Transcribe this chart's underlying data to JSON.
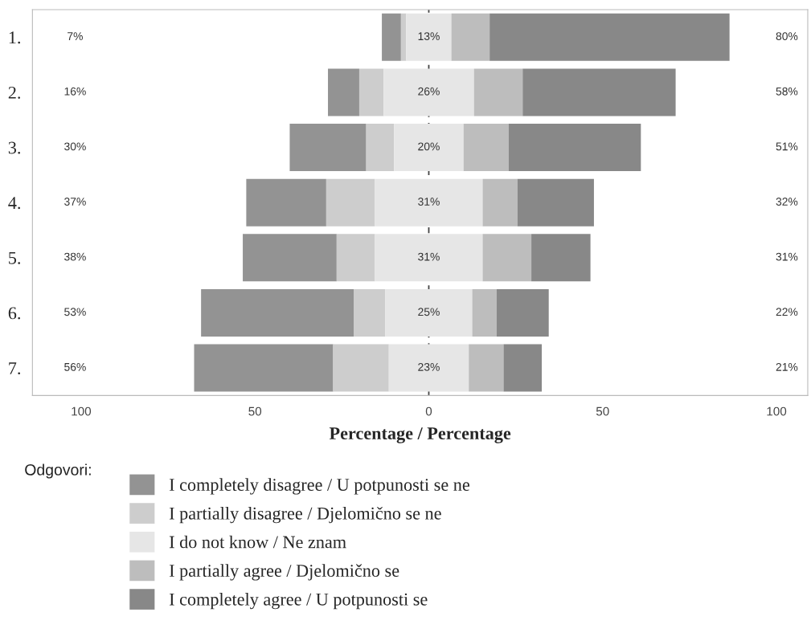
{
  "chart_data": {
    "type": "bar",
    "orientation": "horizontal",
    "categories": [
      "1.",
      "2.",
      "3.",
      "4.",
      "5.",
      "6.",
      "7."
    ],
    "series": [
      {
        "name": "I completely disagree / U potpunosti se ne",
        "color": "#939393",
        "base": [
          -13.5,
          -29,
          -40,
          -52.5,
          -53.5,
          -65.5,
          -67.5
        ],
        "values": [
          5.5,
          9,
          22,
          23,
          27,
          44,
          40
        ]
      },
      {
        "name": "I partially disagree / Djelomično se ne",
        "color": "#cdcdcd",
        "base": [
          -8,
          -20,
          -18,
          -29.5,
          -26.5,
          -21.5,
          -27.5
        ],
        "values": [
          1.5,
          7,
          8,
          14,
          11,
          9,
          16
        ]
      },
      {
        "name": "I do not know / Ne znam",
        "color": "#e6e6e6",
        "base": [
          -6.5,
          -13,
          -10,
          -15.5,
          -15.5,
          -12.5,
          -11.5
        ],
        "values": [
          13,
          26,
          20,
          31,
          31,
          25,
          23
        ],
        "value_labels": [
          "13%",
          "26%",
          "20%",
          "31%",
          "31%",
          "25%",
          "23%"
        ]
      },
      {
        "name": "I partially agree / Djelomično se",
        "color": "#bdbdbd",
        "base": [
          6.5,
          13,
          10,
          15.5,
          15.5,
          12.5,
          11.5
        ],
        "values": [
          11,
          14,
          13,
          10,
          14,
          7,
          10
        ]
      },
      {
        "name": "I completely agree / U potpunosti se",
        "color": "#888888",
        "base": [
          17.5,
          27,
          23,
          25.5,
          29.5,
          19.5,
          21.5
        ],
        "values": [
          69,
          44,
          38,
          22,
          17,
          15,
          11
        ]
      }
    ],
    "xlim": [
      -114,
      109
    ],
    "xticks": [
      {
        "value": -100,
        "label": "100"
      },
      {
        "value": -50,
        "label": "50"
      },
      0,
      50,
      100
    ],
    "xlabel": "Percentage / Percentage",
    "legend_title": "Odgovori:",
    "legend": "bottom",
    "ref_lines": [
      {
        "axis": "x",
        "value": 0,
        "color": "#444444",
        "line_style": "dashed"
      }
    ],
    "annotations": [
      "7%",
      "16%",
      "30%",
      "37%",
      "38%",
      "53%",
      "56%",
      "80%",
      "58%",
      "51%",
      "32%",
      "31%",
      "22%",
      "21%"
    ]
  }
}
